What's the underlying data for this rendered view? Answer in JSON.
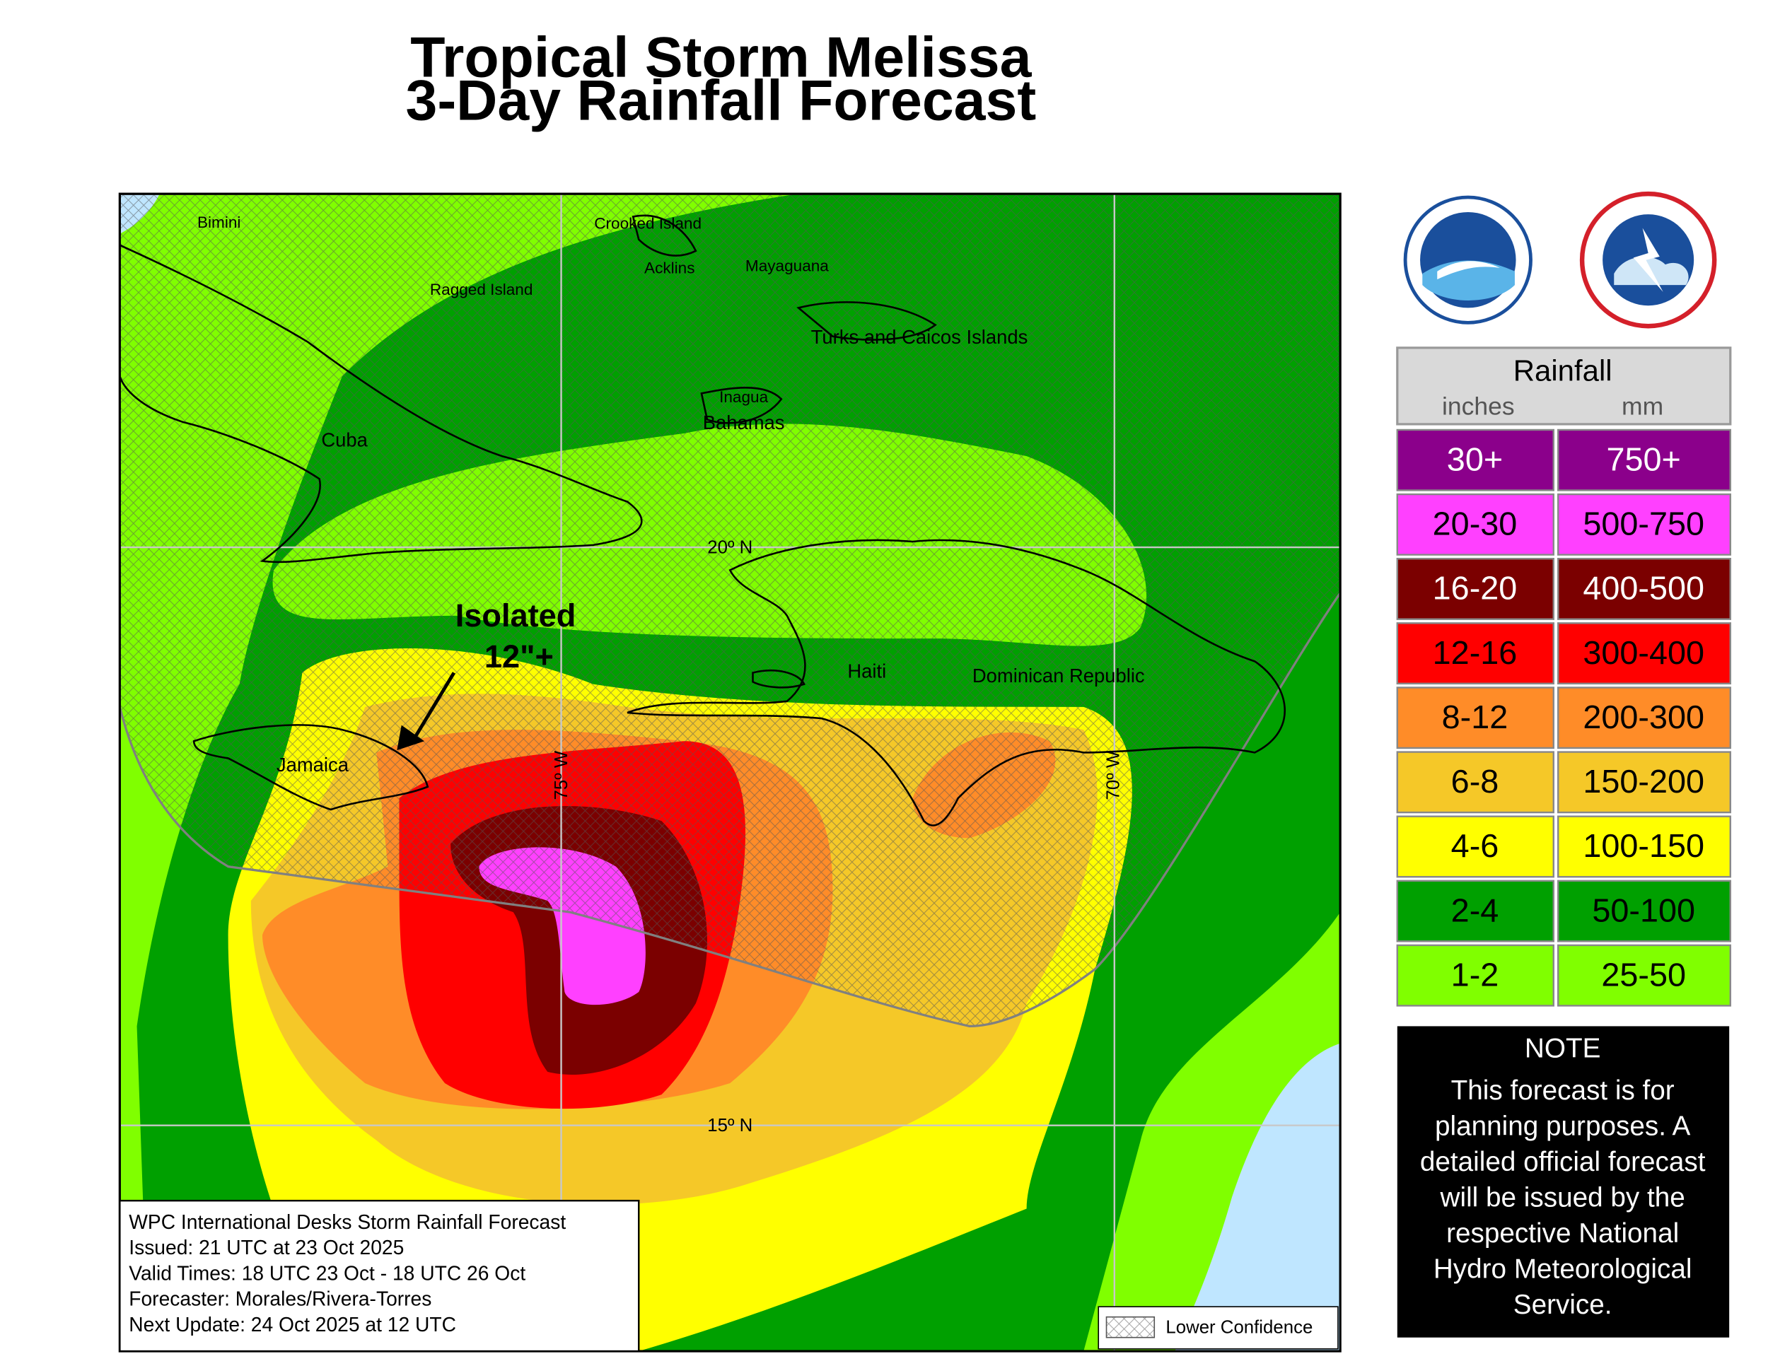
{
  "header": {
    "title_lines": [
      "Tropical Storm Melissa",
      "3-Day Rainfall Forecast"
    ]
  },
  "map": {
    "places": [
      "Bimini",
      "Crooked Island",
      "Acklins",
      "Mayaguana",
      "Ragged Island",
      "Turks and Caicos Islands",
      "Inagua",
      "Bahamas",
      "Cuba",
      "Haiti",
      "Dominican Republic",
      "Jamaica"
    ],
    "grid_labels": [
      "20º N",
      "15º N",
      "75º W",
      "70º W"
    ],
    "annotation": [
      "Isolated",
      "12\"+"
    ],
    "info_box": [
      "WPC International Desks Storm Rainfall Forecast",
      "Issued: 21 UTC at 23 Oct 2025",
      "Valid Times: 18 UTC 23 Oct - 18 UTC 26 Oct",
      "Forecaster: Morales/Rivera-Torres",
      "Next Update: 24 Oct 2025 at 12 UTC"
    ],
    "hatch_legend": "Lower Confidence"
  },
  "legend": {
    "title": "Rainfall",
    "units": [
      "inches",
      "mm"
    ],
    "rows": [
      {
        "inches": "30+",
        "mm": "750+",
        "color": "#8b008b",
        "text_color": "#ffffff"
      },
      {
        "inches": "20-30",
        "mm": "500-750",
        "color": "#ff40ff",
        "text_color": "#000000"
      },
      {
        "inches": "16-20",
        "mm": "400-500",
        "color": "#7b0000",
        "text_color": "#ffffff"
      },
      {
        "inches": "12-16",
        "mm": "300-400",
        "color": "#ff0000",
        "text_color": "#000000"
      },
      {
        "inches": "8-12",
        "mm": "200-300",
        "color": "#ff8c28",
        "text_color": "#000000"
      },
      {
        "inches": "6-8",
        "mm": "150-200",
        "color": "#f5c828",
        "text_color": "#000000"
      },
      {
        "inches": "4-6",
        "mm": "100-150",
        "color": "#ffff00",
        "text_color": "#000000"
      },
      {
        "inches": "2-4",
        "mm": "50-100",
        "color": "#00a000",
        "text_color": "#000000"
      },
      {
        "inches": "1-2",
        "mm": "25-50",
        "color": "#80ff00",
        "text_color": "#000000"
      }
    ]
  },
  "note": {
    "title": "NOTE",
    "lines": [
      "This forecast is for",
      "planning purposes. A",
      "detailed official forecast",
      "will be issued by the",
      "respective National",
      "Hydro Meteorological",
      "Service."
    ]
  }
}
